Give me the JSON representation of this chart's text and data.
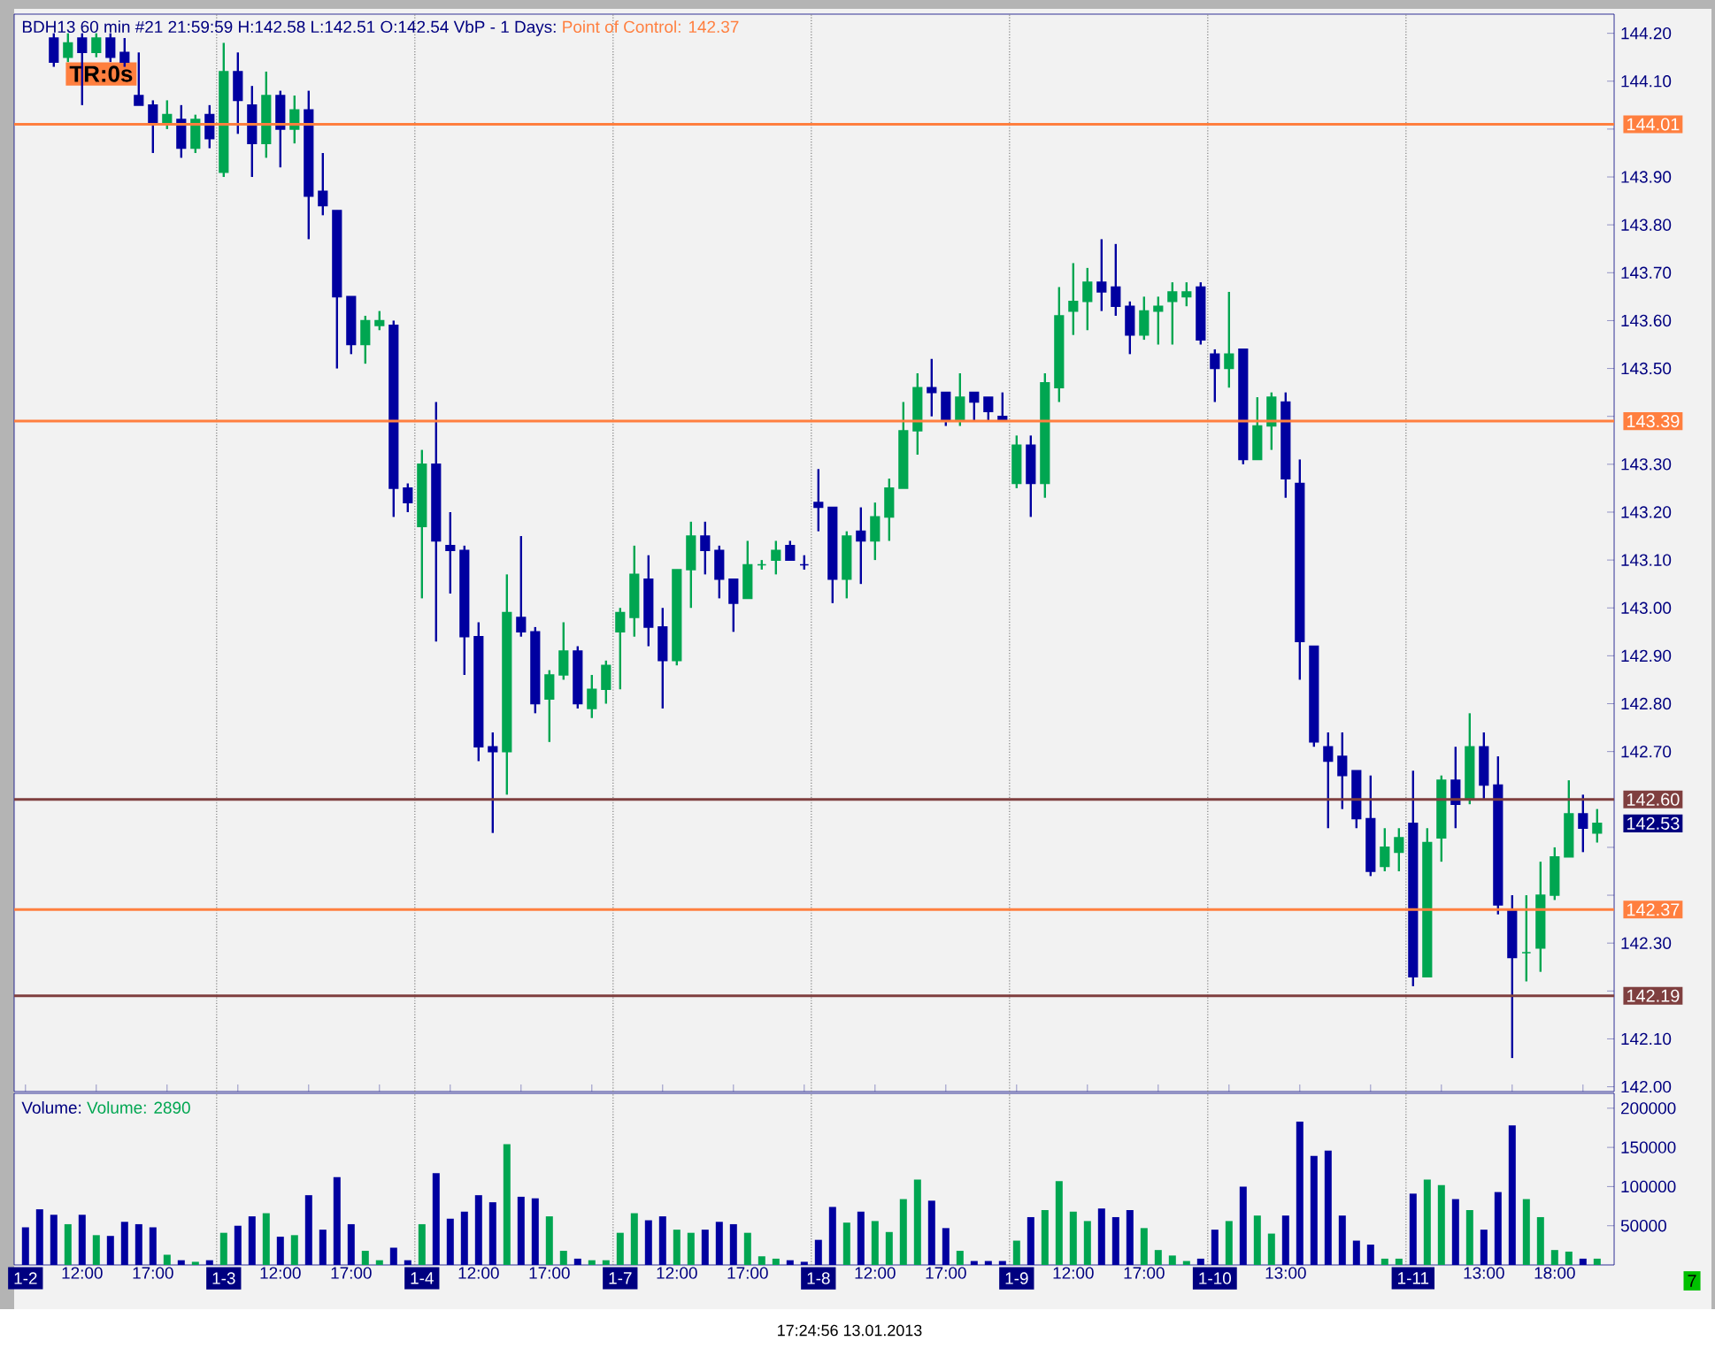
{
  "chart_data": [
    {
      "type": "candlestick",
      "title": "BDH13  60 min   #21 21:59:59 H:142.58 L:142.51 O:142.54   VbP - 1 Days:",
      "subtitle": "Point of Control: 142.37",
      "tick_labels": "y",
      "ohlc": [
        null,
        null,
        [
          144.19,
          144.2,
          144.13,
          144.14
        ],
        [
          144.15,
          144.2,
          144.14,
          144.18
        ],
        [
          144.19,
          144.2,
          144.05,
          144.16
        ],
        [
          144.16,
          144.2,
          144.15,
          144.19
        ],
        [
          144.19,
          144.2,
          144.14,
          144.15
        ],
        [
          144.16,
          144.19,
          144.13,
          144.14
        ],
        [
          144.07,
          144.16,
          144.05,
          144.05
        ],
        [
          144.05,
          144.06,
          143.95,
          144.01
        ],
        [
          144.01,
          144.06,
          144.0,
          144.03
        ],
        [
          144.02,
          144.05,
          143.94,
          143.96
        ],
        [
          143.96,
          144.03,
          143.95,
          144.02
        ],
        [
          144.03,
          144.05,
          143.96,
          143.98
        ],
        [
          143.91,
          144.18,
          143.9,
          144.12
        ],
        [
          144.12,
          144.16,
          143.99,
          144.06
        ],
        [
          144.05,
          144.09,
          143.9,
          143.97
        ],
        [
          143.97,
          144.12,
          143.94,
          144.07
        ],
        [
          144.07,
          144.08,
          143.92,
          144.0
        ],
        [
          144.0,
          144.07,
          143.97,
          144.04
        ],
        [
          144.04,
          144.08,
          143.77,
          143.86
        ],
        [
          143.87,
          143.95,
          143.82,
          143.84
        ],
        [
          143.83,
          143.83,
          143.5,
          143.65
        ],
        [
          143.65,
          143.65,
          143.53,
          143.55
        ],
        [
          143.55,
          143.61,
          143.51,
          143.6
        ],
        [
          143.59,
          143.62,
          143.58,
          143.6
        ],
        [
          143.59,
          143.6,
          143.19,
          143.25
        ],
        [
          143.25,
          143.26,
          143.2,
          143.22
        ],
        [
          143.17,
          143.33,
          143.02,
          143.3
        ],
        [
          143.3,
          143.43,
          142.93,
          143.14
        ],
        [
          143.13,
          143.2,
          143.03,
          143.12
        ],
        [
          143.12,
          143.13,
          142.86,
          142.94
        ],
        [
          142.94,
          142.97,
          142.68,
          142.71
        ],
        [
          142.71,
          142.74,
          142.53,
          142.7
        ],
        [
          142.7,
          143.07,
          142.61,
          142.99
        ],
        [
          142.98,
          143.15,
          142.94,
          142.95
        ],
        [
          142.95,
          142.96,
          142.78,
          142.8
        ],
        [
          142.81,
          142.87,
          142.72,
          142.86
        ],
        [
          142.86,
          142.97,
          142.85,
          142.91
        ],
        [
          142.91,
          142.92,
          142.79,
          142.8
        ],
        [
          142.79,
          142.86,
          142.77,
          142.83
        ],
        [
          142.83,
          142.89,
          142.8,
          142.88
        ],
        [
          142.95,
          143.0,
          142.83,
          142.99
        ],
        [
          142.98,
          143.13,
          142.94,
          143.07
        ],
        [
          143.06,
          143.11,
          142.92,
          142.96
        ],
        [
          142.96,
          143.0,
          142.79,
          142.89
        ],
        [
          142.89,
          143.08,
          142.88,
          143.08
        ],
        [
          143.08,
          143.18,
          143.0,
          143.15
        ],
        [
          143.15,
          143.18,
          143.07,
          143.12
        ],
        [
          143.12,
          143.13,
          143.02,
          143.06
        ],
        [
          143.06,
          143.06,
          142.95,
          143.01
        ],
        [
          143.02,
          143.14,
          143.02,
          143.09
        ],
        [
          143.09,
          143.1,
          143.08,
          143.09
        ],
        [
          143.1,
          143.14,
          143.07,
          143.12
        ],
        [
          143.13,
          143.14,
          143.1,
          143.1
        ],
        [
          143.09,
          143.11,
          143.08,
          143.09
        ],
        [
          143.22,
          143.29,
          143.16,
          143.21
        ],
        [
          143.21,
          143.21,
          143.01,
          143.06
        ],
        [
          143.06,
          143.16,
          143.02,
          143.15
        ],
        [
          143.16,
          143.21,
          143.05,
          143.14
        ],
        [
          143.14,
          143.22,
          143.1,
          143.19
        ],
        [
          143.19,
          143.27,
          143.14,
          143.25
        ],
        [
          143.25,
          143.43,
          143.25,
          143.37
        ],
        [
          143.37,
          143.49,
          143.32,
          143.46
        ],
        [
          143.46,
          143.52,
          143.4,
          143.45
        ],
        [
          143.45,
          143.45,
          143.38,
          143.39
        ],
        [
          143.39,
          143.49,
          143.38,
          143.44
        ],
        [
          143.45,
          143.45,
          143.39,
          143.43
        ],
        [
          143.44,
          143.44,
          143.39,
          143.41
        ],
        [
          143.4,
          143.45,
          143.39,
          143.39
        ],
        [
          143.26,
          143.36,
          143.25,
          143.34
        ],
        [
          143.34,
          143.36,
          143.19,
          143.26
        ],
        [
          143.26,
          143.49,
          143.23,
          143.47
        ],
        [
          143.46,
          143.67,
          143.43,
          143.61
        ],
        [
          143.62,
          143.72,
          143.57,
          143.64
        ],
        [
          143.64,
          143.71,
          143.58,
          143.68
        ],
        [
          143.68,
          143.77,
          143.62,
          143.66
        ],
        [
          143.67,
          143.76,
          143.61,
          143.63
        ],
        [
          143.63,
          143.64,
          143.53,
          143.57
        ],
        [
          143.57,
          143.65,
          143.56,
          143.62
        ],
        [
          143.62,
          143.65,
          143.55,
          143.63
        ],
        [
          143.64,
          143.68,
          143.55,
          143.66
        ],
        [
          143.65,
          143.68,
          143.63,
          143.66
        ],
        [
          143.67,
          143.68,
          143.55,
          143.56
        ],
        [
          143.53,
          143.54,
          143.43,
          143.5
        ],
        [
          143.5,
          143.66,
          143.46,
          143.53
        ],
        [
          143.54,
          143.54,
          143.3,
          143.31
        ],
        [
          143.31,
          143.44,
          143.31,
          143.38
        ],
        [
          143.38,
          143.45,
          143.33,
          143.44
        ],
        [
          143.43,
          143.45,
          143.23,
          143.27
        ],
        [
          143.26,
          143.31,
          142.85,
          142.93
        ],
        [
          142.92,
          142.92,
          142.71,
          142.72
        ],
        [
          142.71,
          142.74,
          142.54,
          142.68
        ],
        [
          142.69,
          142.74,
          142.58,
          142.65
        ],
        [
          142.66,
          142.66,
          142.54,
          142.56
        ],
        [
          142.56,
          142.65,
          142.44,
          142.45
        ],
        [
          142.46,
          142.54,
          142.45,
          142.5
        ],
        [
          142.49,
          142.54,
          142.45,
          142.52
        ],
        [
          142.55,
          142.66,
          142.21,
          142.23
        ],
        [
          142.23,
          142.54,
          142.23,
          142.51
        ],
        [
          142.52,
          142.65,
          142.47,
          142.64
        ],
        [
          142.64,
          142.71,
          142.54,
          142.59
        ],
        [
          142.6,
          142.78,
          142.59,
          142.71
        ],
        [
          142.71,
          142.74,
          142.6,
          142.63
        ],
        [
          142.63,
          142.69,
          142.36,
          142.38
        ],
        [
          142.37,
          142.4,
          142.06,
          142.27
        ],
        [
          142.28,
          142.4,
          142.22,
          142.28
        ],
        [
          142.29,
          142.47,
          142.24,
          142.4
        ],
        [
          142.4,
          142.5,
          142.39,
          142.48
        ],
        [
          142.48,
          142.64,
          142.48,
          142.57
        ],
        [
          142.57,
          142.61,
          142.49,
          142.54
        ],
        [
          142.53,
          142.58,
          142.51,
          142.55
        ]
      ],
      "colors": [
        null,
        null,
        "#0000a0",
        "#00a651",
        "#0000a0",
        "#00a651",
        "#0000a0",
        "#0000a0",
        "#0000a0",
        "#0000a0",
        "#00a651",
        "#0000a0",
        "#00a651",
        "#0000a0",
        "#00a651",
        "#0000a0",
        "#0000a0",
        "#00a651",
        "#0000a0",
        "#00a651",
        "#0000a0",
        "#0000a0",
        "#0000a0",
        "#0000a0",
        "#00a651",
        "#00a651",
        "#0000a0",
        "#0000a0",
        "#00a651",
        "#0000a0",
        "#0000a0",
        "#0000a0",
        "#0000a0",
        "#0000a0",
        "#00a651",
        "#0000a0",
        "#0000a0",
        "#00a651",
        "#00a651",
        "#0000a0",
        "#00a651",
        "#00a651",
        "#00a651",
        "#00a651",
        "#0000a0",
        "#0000a0",
        "#00a651",
        "#00a651",
        "#0000a0",
        "#0000a0",
        "#0000a0",
        "#00a651",
        "#00a651",
        "#00a651",
        "#0000a0",
        "#0000a0",
        "#0000a0",
        "#0000a0",
        "#00a651",
        "#0000a0",
        "#00a651",
        "#00a651",
        "#00a651",
        "#00a651",
        "#0000a0",
        "#0000a0",
        "#00a651",
        "#0000a0",
        "#0000a0",
        "#0000a0",
        "#00a651",
        "#0000a0",
        "#00a651",
        "#00a651",
        "#00a651",
        "#00a651",
        "#0000a0",
        "#0000a0",
        "#0000a0",
        "#00a651",
        "#00a651",
        "#00a651",
        "#00a651",
        "#0000a0",
        "#0000a0",
        "#00a651",
        "#0000a0",
        "#00a651",
        "#00a651",
        "#0000a0",
        "#0000a0",
        "#0000a0",
        "#0000a0",
        "#0000a0",
        "#0000a0",
        "#0000a0",
        "#00a651",
        "#00a651",
        "#0000a0",
        "#00a651",
        "#00a651",
        "#0000a0",
        "#00a651",
        "#0000a0",
        "#0000a0",
        "#0000a0",
        "#00a651",
        "#00a651",
        "#00a651",
        "#00a651",
        "#0000a0",
        "#00a651"
      ],
      "ylim": [
        141.99,
        144.24
      ],
      "yticks": [
        {
          "value": 142.0,
          "label": "142.00"
        },
        {
          "value": 142.1,
          "label": "142.10"
        },
        {
          "value": 142.2,
          "label": null
        },
        {
          "value": 142.3,
          "label": "142.30"
        },
        {
          "value": 142.4,
          "label": null
        },
        {
          "value": 142.5,
          "label": null
        },
        {
          "value": 142.6,
          "label": null
        },
        {
          "value": 142.7,
          "label": "142.70"
        },
        {
          "value": 142.8,
          "label": "142.80"
        },
        {
          "value": 142.9,
          "label": "142.90"
        },
        {
          "value": 143.0,
          "label": "143.00"
        },
        {
          "value": 143.1,
          "label": "143.10"
        },
        {
          "value": 143.2,
          "label": "143.20"
        },
        {
          "value": 143.3,
          "label": "143.30"
        },
        {
          "value": 143.4,
          "label": null
        },
        {
          "value": 143.5,
          "label": "143.50"
        },
        {
          "value": 143.6,
          "label": "143.60"
        },
        {
          "value": 143.7,
          "label": "143.70"
        },
        {
          "value": 143.8,
          "label": "143.80"
        },
        {
          "value": 143.9,
          "label": "143.90"
        },
        {
          "value": 144.0,
          "label": null
        },
        {
          "value": 144.1,
          "label": "144.10"
        },
        {
          "value": 144.2,
          "label": "144.20"
        }
      ],
      "ref_lines": [
        {
          "axis": "y",
          "value": 144.01,
          "label": "144.01",
          "color": "#ff7f3f"
        },
        {
          "axis": "y",
          "value": 143.39,
          "label": "143.39",
          "color": "#ff7f3f"
        },
        {
          "axis": "y",
          "value": 142.6,
          "label": "142.60",
          "color": "#7f3f3f"
        },
        {
          "axis": "y",
          "value": 142.37,
          "label": "142.37",
          "color": "#ff7f3f"
        },
        {
          "axis": "y",
          "value": 142.19,
          "label": "142.19",
          "color": "#7f3f3f"
        }
      ],
      "annotations": [
        "TR:0s",
        "142.53"
      ]
    },
    {
      "type": "bar",
      "title": "Volume:",
      "subtitle": "Volume: 2890",
      "categories": [
        "1-2",
        null,
        null,
        null,
        "12:00",
        null,
        null,
        null,
        null,
        "17:00",
        null,
        null,
        null,
        null,
        "1-3",
        null,
        null,
        null,
        "12:00",
        null,
        null,
        null,
        null,
        "17:00",
        null,
        null,
        null,
        null,
        "1-4",
        null,
        null,
        null,
        "12:00",
        null,
        null,
        null,
        null,
        "17:00",
        null,
        null,
        null,
        null,
        "1-7",
        null,
        null,
        null,
        "12:00",
        null,
        null,
        null,
        null,
        "17:00",
        null,
        null,
        null,
        null,
        "1-8",
        null,
        null,
        null,
        "12:00",
        null,
        null,
        null,
        null,
        "17:00",
        null,
        null,
        null,
        null,
        "1-9",
        null,
        null,
        null,
        "12:00",
        null,
        null,
        null,
        null,
        "17:00",
        null,
        null,
        null,
        null,
        "1-10",
        null,
        null,
        null,
        null,
        "13:00",
        null,
        null,
        null,
        null,
        null,
        null,
        null,
        null,
        "1-11",
        null,
        null,
        null,
        null,
        "13:00",
        null,
        null,
        null,
        null,
        "18:00",
        null,
        null,
        null
      ],
      "values": [
        48000,
        71000,
        64000,
        52000,
        64000,
        38000,
        37000,
        55000,
        52000,
        48000,
        13000,
        6000,
        4000,
        6000,
        41000,
        50000,
        62000,
        66000,
        36000,
        38000,
        89000,
        45000,
        112000,
        52000,
        18000,
        6000,
        22000,
        6000,
        52000,
        117000,
        59000,
        68000,
        89000,
        80000,
        154000,
        87000,
        85000,
        62000,
        18000,
        8000,
        6000,
        6000,
        41000,
        66000,
        57000,
        62000,
        45000,
        41000,
        45000,
        55000,
        52000,
        41000,
        11000,
        8000,
        6000,
        4000,
        32000,
        74000,
        54000,
        68000,
        56000,
        42000,
        84000,
        109000,
        82000,
        47000,
        18000,
        5000,
        5000,
        5000,
        31000,
        61000,
        70000,
        107000,
        68000,
        56000,
        72000,
        61000,
        70000,
        47000,
        19000,
        12000,
        5000,
        8000,
        45000,
        56000,
        100000,
        63000,
        40000,
        63000,
        183000,
        139000,
        146000,
        63000,
        31000,
        26000,
        8000,
        8000,
        91000,
        109000,
        102000,
        84000,
        70000,
        45000,
        93000,
        178000,
        84000,
        61000,
        19000,
        17000,
        8000,
        8000
      ],
      "colors": [
        "#0000a0",
        "#0000a0",
        "#0000a0",
        "#00a651",
        "#0000a0",
        "#00a651",
        "#0000a0",
        "#0000a0",
        "#0000a0",
        "#0000a0",
        "#00a651",
        "#0000a0",
        "#00a651",
        "#0000a0",
        "#00a651",
        "#0000a0",
        "#0000a0",
        "#00a651",
        "#0000a0",
        "#00a651",
        "#0000a0",
        "#0000a0",
        "#0000a0",
        "#0000a0",
        "#00a651",
        "#00a651",
        "#0000a0",
        "#0000a0",
        "#00a651",
        "#0000a0",
        "#0000a0",
        "#0000a0",
        "#0000a0",
        "#0000a0",
        "#00a651",
        "#0000a0",
        "#0000a0",
        "#00a651",
        "#00a651",
        "#0000a0",
        "#00a651",
        "#00a651",
        "#00a651",
        "#00a651",
        "#0000a0",
        "#0000a0",
        "#00a651",
        "#00a651",
        "#0000a0",
        "#0000a0",
        "#0000a0",
        "#00a651",
        "#00a651",
        "#00a651",
        "#0000a0",
        "#0000a0",
        "#0000a0",
        "#0000a0",
        "#00a651",
        "#0000a0",
        "#00a651",
        "#00a651",
        "#00a651",
        "#00a651",
        "#0000a0",
        "#0000a0",
        "#00a651",
        "#0000a0",
        "#0000a0",
        "#0000a0",
        "#00a651",
        "#0000a0",
        "#00a651",
        "#00a651",
        "#00a651",
        "#00a651",
        "#0000a0",
        "#0000a0",
        "#0000a0",
        "#00a651",
        "#00a651",
        "#00a651",
        "#00a651",
        "#0000a0",
        "#0000a0",
        "#00a651",
        "#0000a0",
        "#00a651",
        "#00a651",
        "#0000a0",
        "#0000a0",
        "#0000a0",
        "#0000a0",
        "#0000a0",
        "#0000a0",
        "#0000a0",
        "#00a651",
        "#00a651",
        "#0000a0",
        "#00a651",
        "#00a651",
        "#0000a0",
        "#00a651",
        "#0000a0",
        "#0000a0",
        "#0000a0",
        "#00a651",
        "#00a651",
        "#00a651",
        "#00a651",
        "#0000a0",
        "#00a651"
      ],
      "ylim": [
        0,
        219000
      ],
      "yticks": [
        50000,
        100000,
        150000,
        200000
      ],
      "annotations": [
        "17:24:56 13.01.2013",
        "7"
      ]
    }
  ]
}
